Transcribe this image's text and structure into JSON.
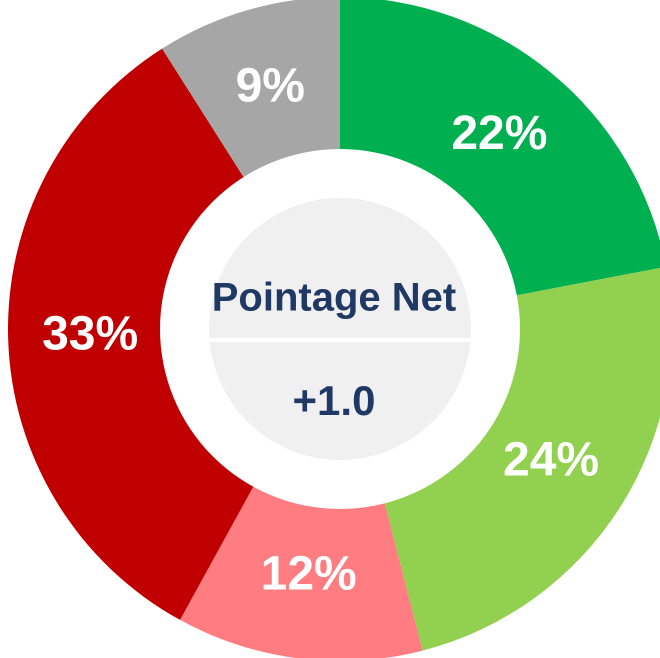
{
  "chart_data": {
    "type": "donut",
    "categories": [
      null,
      null,
      null,
      null,
      null
    ],
    "values": [
      22,
      24,
      12,
      33,
      9
    ],
    "value_labels": [
      "22%",
      "24%",
      "12%",
      "33%",
      "9%"
    ],
    "colors": [
      "#00b050",
      "#92d050",
      "#ff7c80",
      "#c00000",
      "#a6a6a6"
    ],
    "center_title": "Pointage Net",
    "center_value": "+1.0"
  }
}
